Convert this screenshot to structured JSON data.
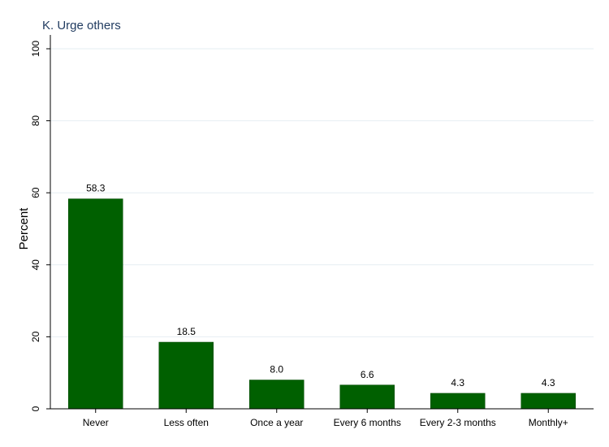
{
  "chart_data": {
    "type": "bar",
    "title": "K. Urge others",
    "xlabel": "",
    "ylabel": "Percent",
    "categories": [
      "Never",
      "Less often",
      "Once a year",
      "Every 6 months",
      "Every 2-3 months",
      "Monthly+"
    ],
    "values": [
      58.3,
      18.5,
      8.0,
      6.6,
      4.3,
      4.3
    ],
    "value_labels": [
      "58.3",
      "18.5",
      "8.0",
      "6.6",
      "4.3",
      "4.3"
    ],
    "ylim": [
      0,
      100
    ],
    "yticks": [
      0,
      20,
      40,
      60,
      80,
      100
    ],
    "ytick_labels": [
      "0",
      "20",
      "40",
      "60",
      "80",
      "100"
    ],
    "grid": true,
    "legend": "none",
    "colors": {
      "bar": "#006000",
      "title": "#1f3a5f",
      "grid": "#e6eef2",
      "axis": "#000000",
      "text": "#000000"
    }
  }
}
